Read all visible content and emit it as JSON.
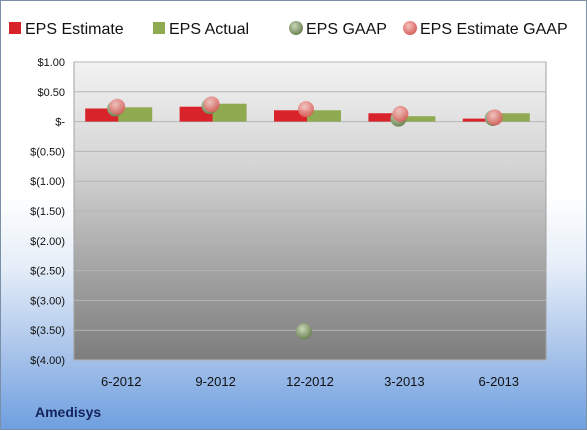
{
  "company": "Amedisys",
  "chart_data": {
    "type": "bar",
    "categories": [
      "6-2012",
      "9-2012",
      "12-2012",
      "3-2013",
      "6-2013"
    ],
    "series": [
      {
        "name": "EPS Estimate",
        "kind": "bar",
        "color": "#d9232b",
        "values": [
          0.22,
          0.25,
          0.19,
          0.14,
          0.05
        ]
      },
      {
        "name": "EPS Actual",
        "kind": "bar",
        "color": "#8faa50",
        "values": [
          0.24,
          0.3,
          0.19,
          0.09,
          0.14
        ]
      },
      {
        "name": "EPS GAAP",
        "kind": "marker",
        "color": "#7e9466",
        "values": [
          0.22,
          0.26,
          -3.52,
          0.05,
          0.06
        ]
      },
      {
        "name": "EPS Estimate GAAP",
        "kind": "marker",
        "color": "#e8807d",
        "values": [
          0.25,
          0.29,
          0.21,
          0.13,
          0.07
        ]
      }
    ],
    "y_ticks": [
      "$1.00",
      "$0.50",
      "$-",
      "$(0.50)",
      "$(1.00)",
      "$(1.50)",
      "$(2.00)",
      "$(2.50)",
      "$(3.00)",
      "$(3.50)",
      "$(4.00)"
    ],
    "ylim": [
      -4.0,
      1.0
    ],
    "grid": true,
    "legend_position": "top"
  }
}
